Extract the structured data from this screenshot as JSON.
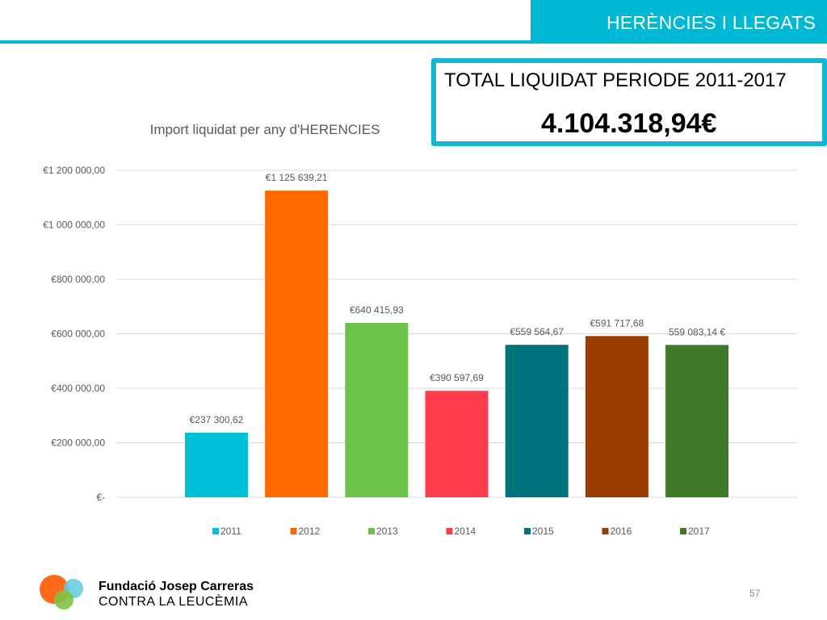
{
  "header": {
    "section_title": "HERÈNCIES I LLEGATS"
  },
  "total": {
    "label": "TOTAL LIQUIDAT PERIODE 2011-2017",
    "value": "4.104.318,94€"
  },
  "chart_data": {
    "type": "bar",
    "title": "Import liquidat per any d'HERENCIES",
    "xlabel": "",
    "ylabel": "",
    "categories": [
      "2011",
      "2012",
      "2013",
      "2014",
      "2015",
      "2016",
      "2017"
    ],
    "values": [
      237300.62,
      1125639.21,
      640415.93,
      390597.69,
      559564.67,
      591717.68,
      559083.14
    ],
    "data_labels": [
      "€237 300,62",
      "€1 125 639,21",
      "€640 415,93",
      "€390 597,69",
      "€559 564,67",
      "€591 717,68",
      "559 083,14 €"
    ],
    "colors": [
      "#00c0d8",
      "#ff6a00",
      "#6cc24a",
      "#ff3c4e",
      "#00737d",
      "#9c3d00",
      "#3f7a2a"
    ],
    "ylim": [
      0,
      1200000
    ],
    "yticks": [
      0,
      200000,
      400000,
      600000,
      800000,
      1000000,
      1200000
    ],
    "ytick_labels": [
      "€-",
      "€200 000,00",
      "€400 000,00",
      "€600 000,00",
      "€800 000,00",
      "€1 000 000,00",
      "€1 200 000,00"
    ],
    "grid": true,
    "legend": "bottom"
  },
  "footer": {
    "org_name": "Fundació Josep Carreras",
    "org_subtitle": "CONTRA LA LEUCÈMIA",
    "page_number": "57",
    "logo_colors": [
      "#ff6a1a",
      "#5fcde0",
      "#7fc241"
    ]
  }
}
